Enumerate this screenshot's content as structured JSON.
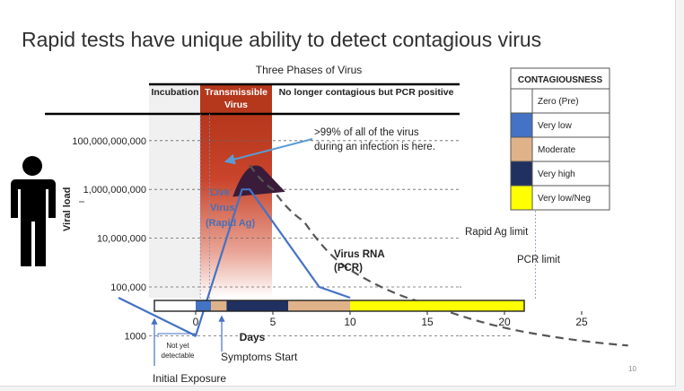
{
  "slide": {
    "title": "Rapid tests have unique ability to detect contagious virus",
    "page_number": "10"
  },
  "header": {
    "chart_title": "Three Phases of Virus",
    "phases": [
      "Incubation",
      "Transmissible",
      "Virus",
      "No longer contagious but PCR positive"
    ]
  },
  "legend": {
    "title": "CONTAGIOUSNESS",
    "items": [
      {
        "label": "Zero (Pre)",
        "color": "#ffffff"
      },
      {
        "label": "Very low",
        "color": "#4472c4"
      },
      {
        "label": "Moderate",
        "color": "#e0b28a"
      },
      {
        "label": "Very high",
        "color": "#203060"
      },
      {
        "label": "Very low/Neg",
        "color": "#ffff00"
      }
    ]
  },
  "annotations": {
    "virus_share_line1": ">99% of all of the virus",
    "virus_share_line2": "during an infection is here.",
    "live_virus": [
      "Live",
      "Virus",
      "(Rapid Ag)"
    ],
    "rna_line1": "Virus RNA",
    "rna_line2": "(PCR)",
    "rapid_limit": "Rapid Ag limit",
    "pcr_limit": "PCR limit",
    "not_yet_1": "Not yet",
    "not_yet_2": "detectable",
    "symptoms": "Symptoms Start",
    "exposure": "Initial Exposure"
  },
  "chart_data": {
    "type": "line",
    "title": "Three Phases of Virus",
    "xlabel": "Days",
    "ylabel": "Viral load",
    "x_ticks": [
      0,
      5,
      10,
      15,
      20,
      25
    ],
    "y_ticks": [
      "100,000,000,000",
      "1,000,000,000",
      "10,000,000",
      "100,000",
      "1000"
    ],
    "y_scale": "log",
    "phases": [
      {
        "name": "Incubation",
        "start": -5,
        "end": 0.5
      },
      {
        "name": "Transmissible Virus",
        "start": 0.5,
        "end": 10
      },
      {
        "name": "No longer contagious but PCR positive",
        "start": 10,
        "end": 28
      }
    ],
    "timeline_bar": [
      {
        "start": -5,
        "end": 0,
        "color": "#ffffff"
      },
      {
        "start": 0,
        "end": 1,
        "color": "#4472c4"
      },
      {
        "start": 1,
        "end": 2,
        "color": "#e0b28a"
      },
      {
        "start": 2,
        "end": 6,
        "color": "#203060"
      },
      {
        "start": 6,
        "end": 10,
        "color": "#e0b28a"
      },
      {
        "start": 10,
        "end": 22,
        "color": "#ffff00"
      },
      {
        "start": 22,
        "end": 28,
        "color": "#ffffff"
      }
    ],
    "series": [
      {
        "type": "line",
        "color": "#4472c4",
        "x": [
          -5,
          0,
          3,
          3.5,
          8,
          10
        ],
        "y": [
          1,
          1000,
          1000000000,
          1000000000,
          100000,
          1
        ]
      },
      {
        "type": "dashed",
        "color": "#555555",
        "x": [
          3.5,
          5,
          7,
          10,
          15,
          22,
          28
        ],
        "y": [
          10000000000,
          1000000000,
          50000000,
          500000,
          20000,
          1200,
          400
        ]
      }
    ],
    "limits": [
      {
        "name": "Rapid Ag limit",
        "y": 100000
      },
      {
        "name": "PCR limit",
        "y": 1000
      }
    ],
    "markers": [
      {
        "label": "Initial Exposure",
        "x": -5
      },
      {
        "label": "Symptoms Start",
        "x": 3
      }
    ]
  }
}
